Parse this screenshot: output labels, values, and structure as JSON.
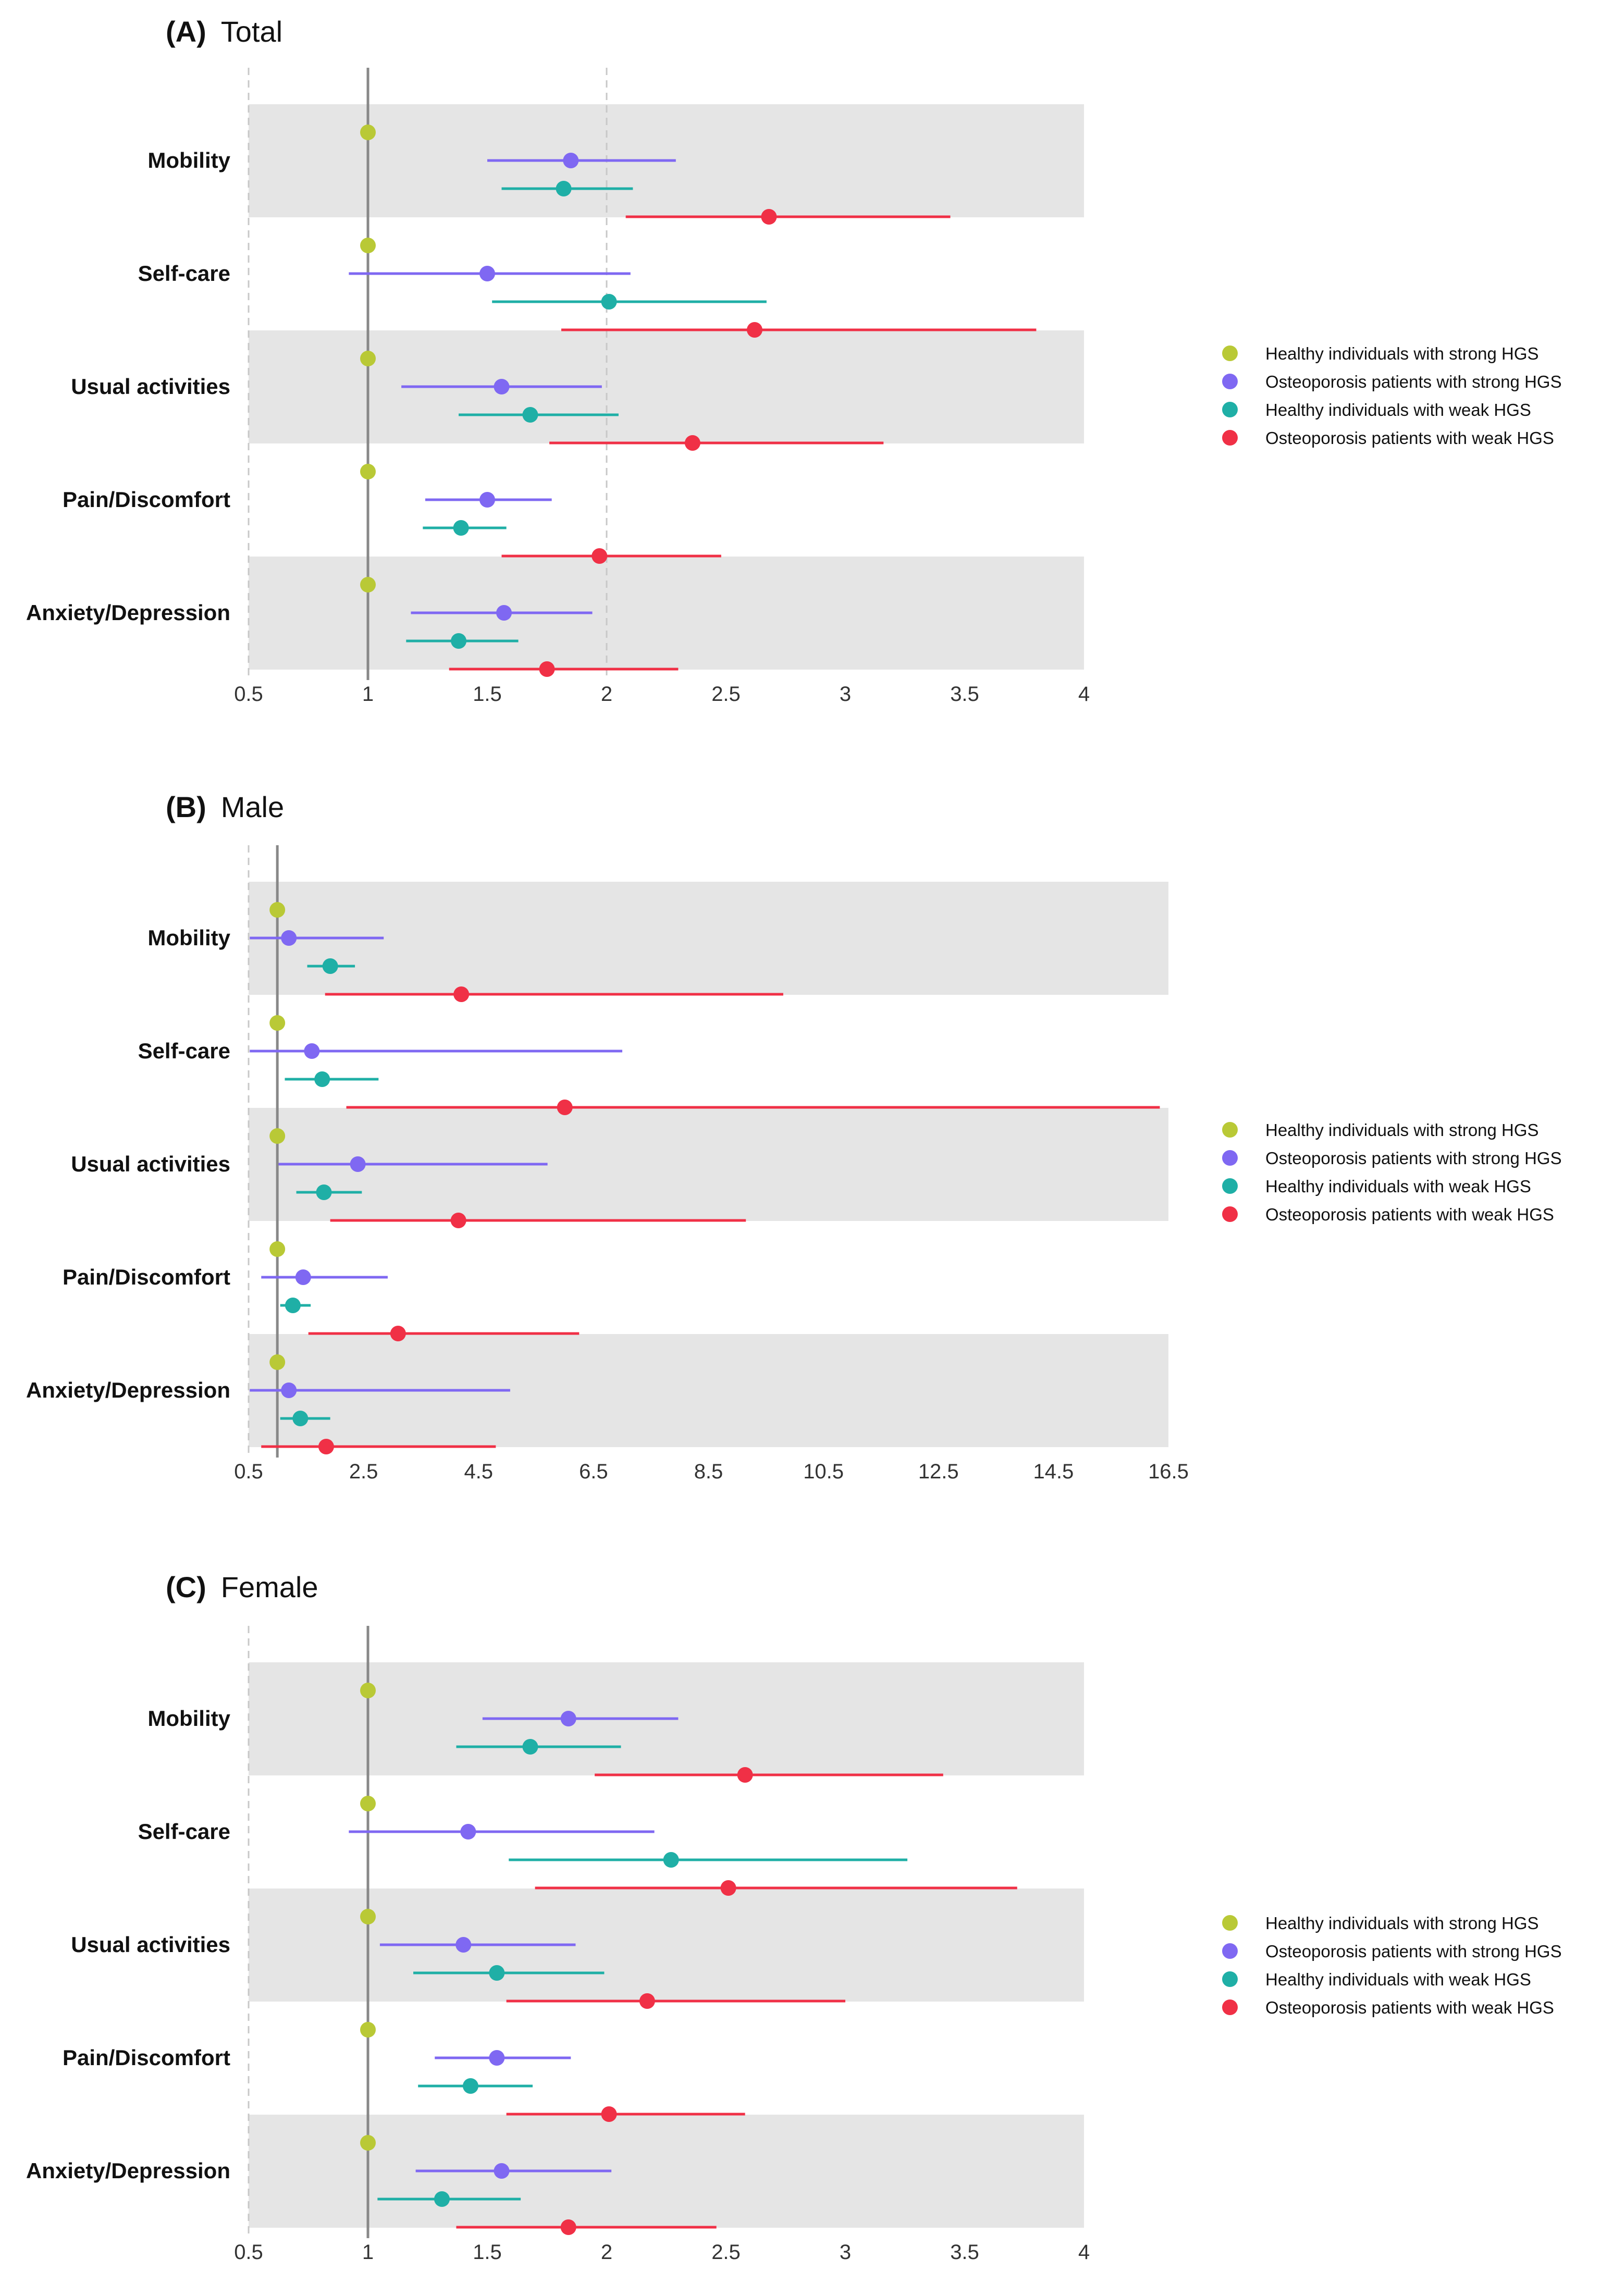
{
  "chart_data": [
    {
      "type": "forest",
      "panel_letter": "(A)",
      "title": "Total",
      "xlim": [
        0.5,
        4
      ],
      "xticks": [
        "0.5",
        "1",
        "1.5",
        "2",
        "2.5",
        "3",
        "3.5",
        "4"
      ],
      "xtick_values": [
        0.5,
        1,
        1.5,
        2,
        2.5,
        3,
        3.5,
        4
      ],
      "reference_line": 1,
      "dashed_lines": [
        0.5,
        2
      ],
      "categories": [
        "Mobility",
        "Self-care",
        "Usual activities",
        "Pain/Discomfort",
        "Anxiety/Depression"
      ],
      "series": [
        {
          "name": "Healthy individuals with strong HGS",
          "values": [
            1,
            1,
            1,
            1,
            1
          ],
          "lower": [
            1,
            1,
            1,
            1,
            1
          ],
          "upper": [
            1,
            1,
            1,
            1,
            1
          ]
        },
        {
          "name": "Osteoporosis patients with strong HGS",
          "values": [
            1.85,
            1.5,
            1.56,
            1.5,
            1.57
          ],
          "lower": [
            1.5,
            0.92,
            1.14,
            1.24,
            1.18
          ],
          "upper": [
            2.29,
            2.1,
            1.98,
            1.77,
            1.94
          ]
        },
        {
          "name": "Healthy individuals with weak HGS",
          "values": [
            1.82,
            2.01,
            1.68,
            1.39,
            1.38
          ],
          "lower": [
            1.56,
            1.52,
            1.38,
            1.23,
            1.16
          ],
          "upper": [
            2.11,
            2.67,
            2.05,
            1.58,
            1.63
          ]
        },
        {
          "name": "Osteoporosis patients with weak HGS",
          "values": [
            2.68,
            2.62,
            2.36,
            1.97,
            1.75
          ],
          "lower": [
            2.08,
            1.81,
            1.76,
            1.56,
            1.34
          ],
          "upper": [
            3.44,
            3.8,
            3.16,
            2.48,
            2.3
          ]
        }
      ]
    },
    {
      "type": "forest",
      "panel_letter": "(B)",
      "title": "Male",
      "xlim": [
        0.5,
        16.5
      ],
      "xticks": [
        "0.5",
        "2.5",
        "4.5",
        "6.5",
        "8.5",
        "10.5",
        "12.5",
        "14.5",
        "16.5"
      ],
      "xtick_values": [
        0.5,
        2.5,
        4.5,
        6.5,
        8.5,
        10.5,
        12.5,
        14.5,
        16.5
      ],
      "reference_line": 1,
      "dashed_lines": [
        0.5
      ],
      "categories": [
        "Mobility",
        "Self-care",
        "Usual activities",
        "Pain/Discomfort",
        "Anxiety/Depression"
      ],
      "series": [
        {
          "name": "Healthy individuals with strong HGS",
          "values": [
            1,
            1,
            1,
            1,
            1
          ],
          "lower": [
            1,
            1,
            1,
            1,
            1
          ],
          "upper": [
            1,
            1,
            1,
            1,
            1
          ]
        },
        {
          "name": "Osteoporosis patients with strong HGS",
          "values": [
            1.2,
            1.6,
            2.4,
            1.45,
            1.2
          ],
          "lower": [
            0.52,
            0.52,
            1.02,
            0.72,
            0.52
          ],
          "upper": [
            2.85,
            7.0,
            5.7,
            2.92,
            5.05
          ]
        },
        {
          "name": "Healthy individuals with weak HGS",
          "values": [
            1.92,
            1.78,
            1.81,
            1.27,
            1.4
          ],
          "lower": [
            1.52,
            1.13,
            1.33,
            1.05,
            1.05
          ],
          "upper": [
            2.35,
            2.76,
            2.47,
            1.58,
            1.92
          ]
        },
        {
          "name": "Osteoporosis patients with weak HGS",
          "values": [
            4.2,
            6.0,
            4.15,
            3.1,
            1.85
          ],
          "lower": [
            1.83,
            2.2,
            1.92,
            1.54,
            0.72
          ],
          "upper": [
            9.8,
            16.35,
            9.15,
            6.25,
            4.8
          ]
        }
      ]
    },
    {
      "type": "forest",
      "panel_letter": "(C)",
      "title": "Female",
      "xlim": [
        0.5,
        4
      ],
      "xticks": [
        "0.5",
        "1",
        "1.5",
        "2",
        "2.5",
        "3",
        "3.5",
        "4"
      ],
      "xtick_values": [
        0.5,
        1,
        1.5,
        2,
        2.5,
        3,
        3.5,
        4
      ],
      "reference_line": 1,
      "dashed_lines": [
        0.5
      ],
      "categories": [
        "Mobility",
        "Self-care",
        "Usual activities",
        "Pain/Discomfort",
        "Anxiety/Depression"
      ],
      "series": [
        {
          "name": "Healthy individuals with strong HGS",
          "values": [
            1,
            1,
            1,
            1,
            1
          ],
          "lower": [
            1,
            1,
            1,
            1,
            1
          ],
          "upper": [
            1,
            1,
            1,
            1,
            1
          ]
        },
        {
          "name": "Osteoporosis patients with strong HGS",
          "values": [
            1.84,
            1.42,
            1.4,
            1.54,
            1.56
          ],
          "lower": [
            1.48,
            0.92,
            1.05,
            1.28,
            1.2
          ],
          "upper": [
            2.3,
            2.2,
            1.87,
            1.85,
            2.02
          ]
        },
        {
          "name": "Healthy individuals with weak HGS",
          "values": [
            1.68,
            2.27,
            1.54,
            1.43,
            1.31
          ],
          "lower": [
            1.37,
            1.59,
            1.19,
            1.21,
            1.04
          ],
          "upper": [
            2.06,
            3.26,
            1.99,
            1.69,
            1.64
          ]
        },
        {
          "name": "Osteoporosis patients with weak HGS",
          "values": [
            2.58,
            2.51,
            2.17,
            2.01,
            1.84
          ],
          "lower": [
            1.95,
            1.7,
            1.58,
            1.58,
            1.37
          ],
          "upper": [
            3.41,
            3.72,
            3.0,
            2.58,
            2.46
          ]
        }
      ]
    }
  ],
  "colors": {
    "series": [
      "#b9c936",
      "#7f68f2",
      "#1fafa6",
      "#f03046"
    ],
    "band": "#e5e5e5",
    "reference": "#888888",
    "dashed": "#c8c8c8"
  }
}
